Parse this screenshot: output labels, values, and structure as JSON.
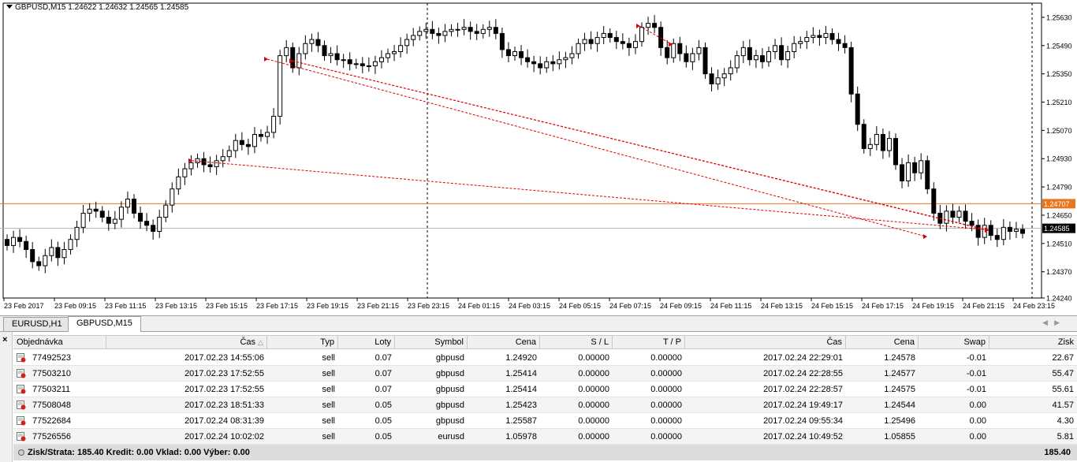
{
  "chart": {
    "title": "GBPUSD,M15  1.24622 1.24632 1.24565 1.24585",
    "price_labels": [
      "1.25630",
      "1.25490",
      "1.25350",
      "1.25210",
      "1.25070",
      "1.24930",
      "1.24790",
      "1.24650",
      "1.24510",
      "1.24370",
      "1.24240"
    ],
    "current_price": "1.24585",
    "hline_price": "1.24707",
    "time_labels": [
      "23 Feb 2017",
      "23 Feb 09:15",
      "23 Feb 11:15",
      "23 Feb 13:15",
      "23 Feb 15:15",
      "23 Feb 17:15",
      "23 Feb 19:15",
      "23 Feb 21:15",
      "23 Feb 23:15",
      "24 Feb 01:15",
      "24 Feb 03:15",
      "24 Feb 05:15",
      "24 Feb 07:15",
      "24 Feb 09:15",
      "24 Feb 11:15",
      "24 Feb 13:15",
      "24 Feb 15:15",
      "24 Feb 17:15",
      "24 Feb 19:15",
      "24 Feb 21:15",
      "24 Feb 23:15"
    ],
    "colors": {
      "hline": "#e8761e",
      "trade_line": "#e00000",
      "current_line": "#b0b0b0",
      "candle": "#000000"
    }
  },
  "chart_data": {
    "type": "candlestick",
    "ylim": [
      1.2424,
      1.257
    ],
    "closes": [
      1.245,
      1.2454,
      1.2452,
      1.2448,
      1.2442,
      1.244,
      1.2445,
      1.2449,
      1.2444,
      1.2448,
      1.2453,
      1.2459,
      1.2466,
      1.2468,
      1.2467,
      1.2464,
      1.2461,
      1.2463,
      1.2469,
      1.2473,
      1.2466,
      1.2462,
      1.246,
      1.2457,
      1.2464,
      1.247,
      1.2478,
      1.2484,
      1.2488,
      1.2491,
      1.2493,
      1.249,
      1.2489,
      1.2492,
      1.2494,
      1.2497,
      1.2502,
      1.25,
      1.2499,
      1.2505,
      1.2504,
      1.2506,
      1.2514,
      1.2544,
      1.2548,
      1.2538,
      1.2545,
      1.255,
      1.2552,
      1.2549,
      1.2544,
      1.2545,
      1.2542,
      1.2542,
      1.254,
      1.254,
      1.2539,
      1.2539,
      1.2541,
      1.2543,
      1.2545,
      1.2546,
      1.2549,
      1.2552,
      1.2554,
      1.2556,
      1.2557,
      1.2555,
      1.2554,
      1.2556,
      1.2557,
      1.2557,
      1.2558,
      1.2556,
      1.2555,
      1.2557,
      1.2558,
      1.2555,
      1.2547,
      1.2544,
      1.2546,
      1.2543,
      1.2541,
      1.254,
      1.2538,
      1.2541,
      1.254,
      1.2542,
      1.2543,
      1.2545,
      1.255,
      1.2552,
      1.255,
      1.2553,
      1.2555,
      1.2553,
      1.2551,
      1.255,
      1.2548,
      1.2551,
      1.2558,
      1.256,
      1.2558,
      1.2548,
      1.2543,
      1.255,
      1.2545,
      1.2541,
      1.2545,
      1.2548,
      1.2535,
      1.253,
      1.2533,
      1.2535,
      1.2538,
      1.2544,
      1.2548,
      1.2542,
      1.2544,
      1.2541,
      1.2546,
      1.2549,
      1.2542,
      1.2546,
      1.255,
      1.2551,
      1.2553,
      1.2554,
      1.2553,
      1.2555,
      1.2552,
      1.255,
      1.2548,
      1.2525,
      1.251,
      1.2498,
      1.25,
      1.2505,
      1.2497,
      1.2503,
      1.249,
      1.2482,
      1.2491,
      1.2486,
      1.2492,
      1.2478,
      1.2466,
      1.2461,
      1.2467,
      1.2464,
      1.2467,
      1.2462,
      1.246,
      1.2454,
      1.246,
      1.2455,
      1.2453,
      1.2459,
      1.2457,
      1.2458,
      1.2456,
      1.246,
      1.2462,
      1.2459
    ],
    "title": "GBPUSD,M15"
  },
  "tabs": [
    {
      "label": "EURUSD,H1"
    },
    {
      "label": "GBPUSD,M15"
    }
  ],
  "table": {
    "columns": [
      "Objednávka",
      "Čas",
      "Typ",
      "Loty",
      "Symbol",
      "Cena",
      "S / L",
      "T / P",
      "Čas",
      "Cena",
      "Swap",
      "Zisk"
    ],
    "rows": [
      [
        "77492523",
        "2017.02.23 14:55:06",
        "sell",
        "0.07",
        "gbpusd",
        "1.24920",
        "0.00000",
        "0.00000",
        "2017.02.24 22:29:01",
        "1.24578",
        "-0.01",
        "22.67"
      ],
      [
        "77503210",
        "2017.02.23 17:52:55",
        "sell",
        "0.07",
        "gbpusd",
        "1.25414",
        "0.00000",
        "0.00000",
        "2017.02.24 22:28:55",
        "1.24577",
        "-0.01",
        "55.47"
      ],
      [
        "77503211",
        "2017.02.23 17:52:55",
        "sell",
        "0.07",
        "gbpusd",
        "1.25414",
        "0.00000",
        "0.00000",
        "2017.02.24 22:28:57",
        "1.24575",
        "-0.01",
        "55.61"
      ],
      [
        "77508048",
        "2017.02.23 18:51:33",
        "sell",
        "0.05",
        "gbpusd",
        "1.25423",
        "0.00000",
        "0.00000",
        "2017.02.24 19:49:17",
        "1.24544",
        "0.00",
        "41.57"
      ],
      [
        "77522684",
        "2017.02.24 08:31:39",
        "sell",
        "0.05",
        "gbpusd",
        "1.25587",
        "0.00000",
        "0.00000",
        "2017.02.24 09:55:34",
        "1.25496",
        "0.00",
        "4.30"
      ],
      [
        "77526556",
        "2017.02.24 10:02:02",
        "sell",
        "0.05",
        "eurusd",
        "1.05978",
        "0.00000",
        "0.00000",
        "2017.02.24 10:49:52",
        "1.05855",
        "0.00",
        "5.81"
      ]
    ],
    "footer": "Zisk/Strata: 185.40  Kredit: 0.00  Vklad: 0.00  Výber: 0.00",
    "footer_total": "185.40"
  }
}
